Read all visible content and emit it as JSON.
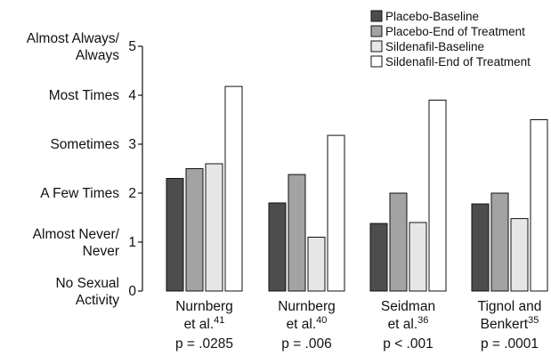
{
  "chart_data": {
    "type": "bar",
    "categories": [
      {
        "line1": "Nurnberg",
        "line2": "et al.",
        "ref": "41",
        "pvalue": "p = .0285"
      },
      {
        "line1": "Nurnberg",
        "line2": "et al.",
        "ref": "40",
        "pvalue": "p = .006"
      },
      {
        "line1": "Seidman",
        "line2": "et al.",
        "ref": "36",
        "pvalue": "p < .001"
      },
      {
        "line1": "Tignol and",
        "line2": "Benkert",
        "ref": "35",
        "pvalue": "p = .0001"
      }
    ],
    "series": [
      {
        "name": "Placebo-Baseline",
        "color": "#4d4d4d",
        "values": [
          2.3,
          1.8,
          1.38,
          1.78
        ]
      },
      {
        "name": "Placebo-End of Treatment",
        "color": "#a3a3a3",
        "values": [
          2.5,
          2.38,
          2.0,
          2.0
        ]
      },
      {
        "name": "Sildenafil-Baseline",
        "color": "#e6e6e6",
        "values": [
          2.6,
          1.1,
          1.4,
          1.48
        ]
      },
      {
        "name": "Sildenafil-End of Treatment",
        "color": "#ffffff",
        "values": [
          4.18,
          3.18,
          3.9,
          3.5
        ]
      }
    ],
    "ylim": [
      0,
      5
    ],
    "yticks": [
      0,
      1,
      2,
      3,
      4,
      5
    ],
    "ytick_labels": [
      [
        "No Sexual",
        "Activity"
      ],
      [
        "Almost Never/",
        "Never"
      ],
      [
        "A Few Times"
      ],
      [
        "Sometimes"
      ],
      [
        "Most Times"
      ],
      [
        "Almost Always/",
        "Always"
      ]
    ],
    "legend_position": "top-right",
    "grid": false
  }
}
